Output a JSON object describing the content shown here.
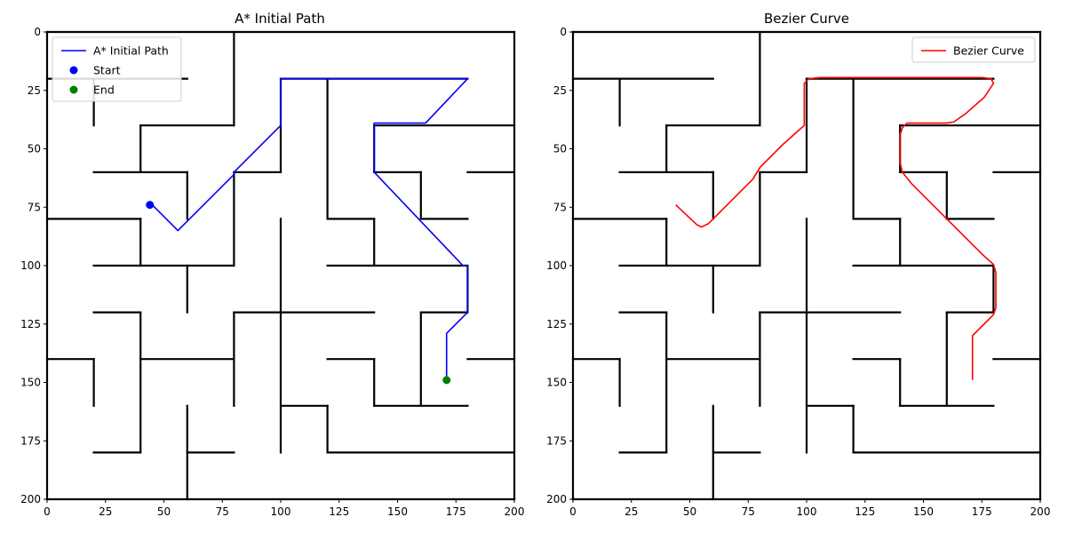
{
  "chart_data": [
    {
      "type": "line",
      "title": "A* Initial Path",
      "xlabel": "",
      "ylabel": "",
      "xlim": [
        0,
        200
      ],
      "ylim": [
        200,
        0
      ],
      "xticks": [
        "0",
        "25",
        "50",
        "75",
        "100",
        "125",
        "150",
        "175",
        "200"
      ],
      "yticks": [
        "0",
        "25",
        "50",
        "75",
        "100",
        "125",
        "150",
        "175",
        "200"
      ],
      "grid": false,
      "legend_position": "upper left",
      "series": [
        {
          "name": "A* Initial Path",
          "kind": "line",
          "color": "#0000ff",
          "points": [
            [
              44,
              74
            ],
            [
              45,
              74
            ],
            [
              56,
              85
            ],
            [
              80,
              61
            ],
            [
              80,
              60
            ],
            [
              100,
              40
            ],
            [
              100,
              20
            ],
            [
              180,
              20
            ],
            [
              162,
              39
            ],
            [
              140,
              39
            ],
            [
              140,
              60
            ],
            [
              178,
              100
            ],
            [
              180,
              100
            ],
            [
              180,
              120
            ],
            [
              171,
              129
            ],
            [
              171,
              149
            ]
          ]
        },
        {
          "name": "Start",
          "kind": "scatter",
          "color": "#0000ff",
          "points": [
            [
              44,
              74
            ]
          ]
        },
        {
          "name": "End",
          "kind": "scatter",
          "color": "#008000",
          "points": [
            [
              171,
              149
            ]
          ]
        }
      ],
      "walls": [
        [
          0,
          0,
          200,
          0
        ],
        [
          0,
          200,
          200,
          200
        ],
        [
          0,
          0,
          0,
          200
        ],
        [
          200,
          0,
          200,
          200
        ],
        [
          80,
          0,
          80,
          40
        ],
        [
          0,
          20,
          60,
          20
        ],
        [
          20,
          20,
          20,
          40
        ],
        [
          40,
          40,
          80,
          40
        ],
        [
          40,
          40,
          40,
          60
        ],
        [
          20,
          60,
          60,
          60
        ],
        [
          60,
          60,
          60,
          80
        ],
        [
          0,
          80,
          40,
          80
        ],
        [
          40,
          80,
          40,
          100
        ],
        [
          20,
          100,
          80,
          100
        ],
        [
          80,
          60,
          80,
          100
        ],
        [
          80,
          60,
          100,
          60
        ],
        [
          100,
          20,
          100,
          60
        ],
        [
          100,
          20,
          180,
          20
        ],
        [
          120,
          20,
          120,
          80
        ],
        [
          120,
          80,
          140,
          80
        ],
        [
          140,
          80,
          140,
          100
        ],
        [
          140,
          40,
          200,
          40
        ],
        [
          140,
          40,
          140,
          60
        ],
        [
          140,
          60,
          160,
          60
        ],
        [
          160,
          60,
          160,
          80
        ],
        [
          160,
          80,
          180,
          80
        ],
        [
          180,
          60,
          200,
          60
        ],
        [
          120,
          100,
          180,
          100
        ],
        [
          180,
          100,
          180,
          120
        ],
        [
          160,
          120,
          180,
          120
        ],
        [
          160,
          120,
          160,
          160
        ],
        [
          140,
          160,
          180,
          160
        ],
        [
          140,
          140,
          140,
          160
        ],
        [
          120,
          140,
          140,
          140
        ],
        [
          180,
          140,
          200,
          140
        ],
        [
          100,
          80,
          100,
          180
        ],
        [
          100,
          160,
          120,
          160
        ],
        [
          120,
          160,
          120,
          180
        ],
        [
          120,
          180,
          200,
          180
        ],
        [
          80,
          120,
          140,
          120
        ],
        [
          80,
          120,
          80,
          160
        ],
        [
          40,
          140,
          80,
          140
        ],
        [
          20,
          120,
          40,
          120
        ],
        [
          40,
          120,
          40,
          180
        ],
        [
          20,
          180,
          40,
          180
        ],
        [
          0,
          140,
          20,
          140
        ],
        [
          20,
          140,
          20,
          160
        ],
        [
          60,
          100,
          60,
          120
        ],
        [
          60,
          160,
          60,
          200
        ],
        [
          60,
          180,
          80,
          180
        ]
      ]
    },
    {
      "type": "line",
      "title": "Bezier Curve",
      "xlabel": "",
      "ylabel": "",
      "xlim": [
        0,
        200
      ],
      "ylim": [
        200,
        0
      ],
      "xticks": [
        "0",
        "25",
        "50",
        "75",
        "100",
        "125",
        "150",
        "175",
        "200"
      ],
      "yticks": [
        "0",
        "25",
        "50",
        "75",
        "100",
        "125",
        "150",
        "175",
        "200"
      ],
      "grid": false,
      "legend_position": "upper right",
      "series": [
        {
          "name": "Bezier Curve",
          "kind": "line",
          "color": "#ff0000",
          "points": [
            [
              44,
              74
            ],
            [
              53,
              82.5
            ],
            [
              55,
              83.5
            ],
            [
              58,
              82
            ],
            [
              62,
              78
            ],
            [
              72,
              68
            ],
            [
              77,
              63
            ],
            [
              80,
              58
            ],
            [
              90,
              48
            ],
            [
              99,
              40
            ],
            [
              99,
              22
            ],
            [
              101,
              20
            ],
            [
              106,
              19.5
            ],
            [
              175,
              19.5
            ],
            [
              179,
              20
            ],
            [
              180,
              22
            ],
            [
              176,
              28
            ],
            [
              168,
              35
            ],
            [
              163,
              38.5
            ],
            [
              160,
              39
            ],
            [
              143,
              39
            ],
            [
              141,
              41
            ],
            [
              140,
              44
            ],
            [
              140,
              56
            ],
            [
              141,
              60
            ],
            [
              145,
              65
            ],
            [
              160,
              80
            ],
            [
              170,
              90
            ],
            [
              175,
              95
            ],
            [
              180,
              99.5
            ],
            [
              181,
              103
            ],
            [
              181,
              118
            ],
            [
              180,
              121
            ],
            [
              176,
              125
            ],
            [
              171,
              130
            ],
            [
              171,
              149
            ]
          ]
        }
      ],
      "walls": [
        [
          0,
          0,
          200,
          0
        ],
        [
          0,
          200,
          200,
          200
        ],
        [
          0,
          0,
          0,
          200
        ],
        [
          200,
          0,
          200,
          200
        ],
        [
          80,
          0,
          80,
          40
        ],
        [
          0,
          20,
          60,
          20
        ],
        [
          20,
          20,
          20,
          40
        ],
        [
          40,
          40,
          80,
          40
        ],
        [
          40,
          40,
          40,
          60
        ],
        [
          20,
          60,
          60,
          60
        ],
        [
          60,
          60,
          60,
          80
        ],
        [
          0,
          80,
          40,
          80
        ],
        [
          40,
          80,
          40,
          100
        ],
        [
          20,
          100,
          80,
          100
        ],
        [
          80,
          60,
          80,
          100
        ],
        [
          80,
          60,
          100,
          60
        ],
        [
          100,
          20,
          100,
          60
        ],
        [
          100,
          20,
          180,
          20
        ],
        [
          120,
          20,
          120,
          80
        ],
        [
          120,
          80,
          140,
          80
        ],
        [
          140,
          80,
          140,
          100
        ],
        [
          140,
          40,
          200,
          40
        ],
        [
          140,
          40,
          140,
          60
        ],
        [
          140,
          60,
          160,
          60
        ],
        [
          160,
          60,
          160,
          80
        ],
        [
          160,
          80,
          180,
          80
        ],
        [
          180,
          60,
          200,
          60
        ],
        [
          120,
          100,
          180,
          100
        ],
        [
          180,
          100,
          180,
          120
        ],
        [
          160,
          120,
          180,
          120
        ],
        [
          160,
          120,
          160,
          160
        ],
        [
          140,
          160,
          180,
          160
        ],
        [
          140,
          140,
          140,
          160
        ],
        [
          120,
          140,
          140,
          140
        ],
        [
          180,
          140,
          200,
          140
        ],
        [
          100,
          80,
          100,
          180
        ],
        [
          100,
          160,
          120,
          160
        ],
        [
          120,
          160,
          120,
          180
        ],
        [
          120,
          180,
          200,
          180
        ],
        [
          80,
          120,
          140,
          120
        ],
        [
          80,
          120,
          80,
          160
        ],
        [
          40,
          140,
          80,
          140
        ],
        [
          20,
          120,
          40,
          120
        ],
        [
          40,
          120,
          40,
          180
        ],
        [
          20,
          180,
          40,
          180
        ],
        [
          0,
          140,
          20,
          140
        ],
        [
          20,
          140,
          20,
          160
        ],
        [
          60,
          100,
          60,
          120
        ],
        [
          60,
          160,
          60,
          200
        ],
        [
          60,
          180,
          80,
          180
        ]
      ]
    }
  ]
}
